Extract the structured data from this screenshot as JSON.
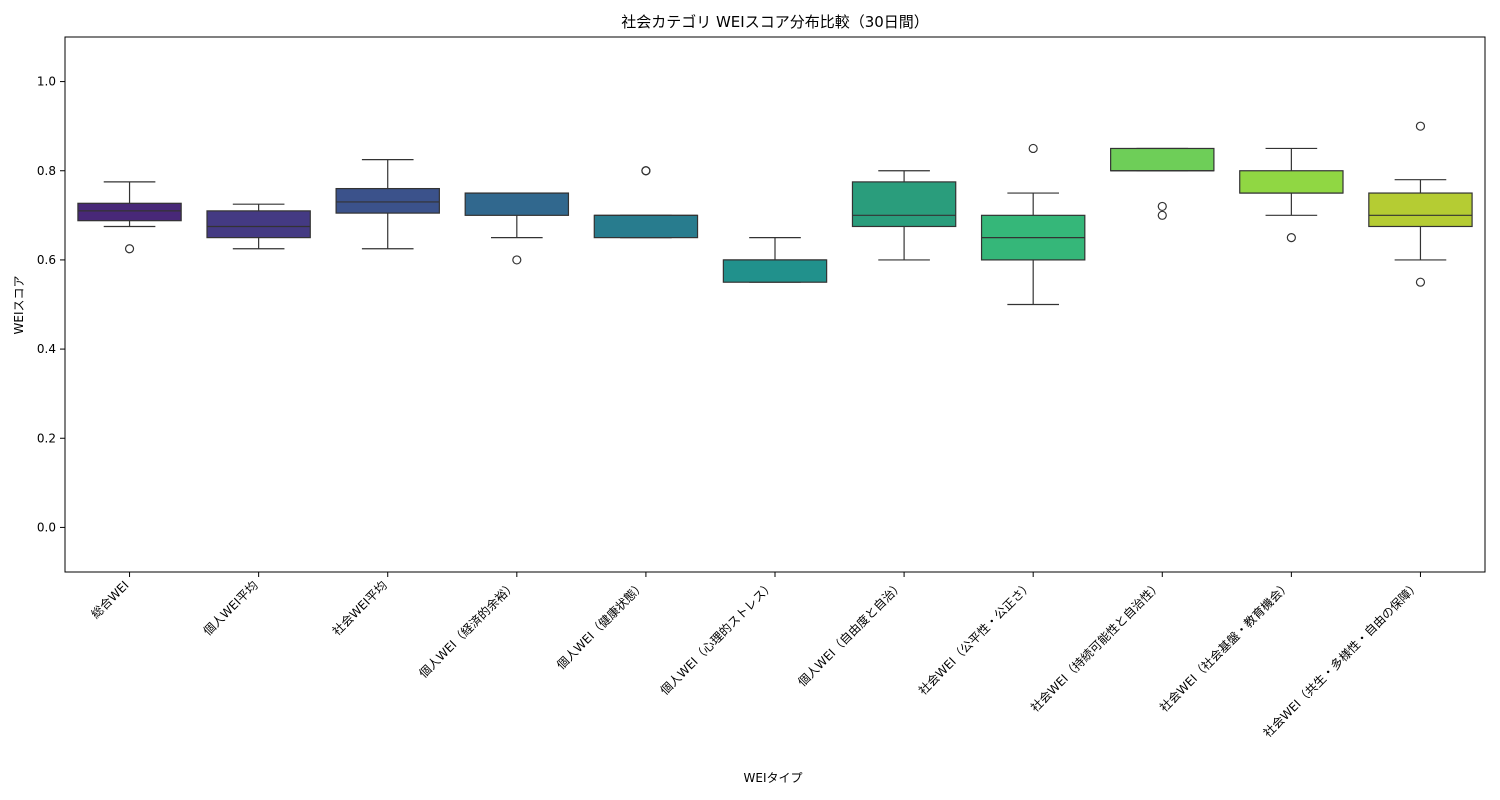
{
  "chart_data": {
    "type": "box",
    "title": "社会カテゴリ WEIスコア分布比較（30日間）",
    "xlabel": "WEIタイプ",
    "ylabel": "WEIスコア",
    "ylim": [
      -0.1,
      1.1
    ],
    "yticks": [
      0.0,
      0.2,
      0.4,
      0.6,
      0.8,
      1.0
    ],
    "ytick_labels": [
      "0.0",
      "0.2",
      "0.4",
      "0.6",
      "0.8",
      "1.0"
    ],
    "grid": false,
    "categories": [
      "総合WEI",
      "個人WEI平均",
      "社会WEI平均",
      "個人WEI（経済的余裕）",
      "個人WEI（健康状態）",
      "個人WEI（心理的ストレス）",
      "個人WEI（自由度と自治）",
      "社会WEI（公平性・公正さ）",
      "社会WEI（持続可能性と自治性）",
      "社会WEI（社会基盤・教育機会）",
      "社会WEI（共生・多様性・自由の保障）"
    ],
    "boxes": [
      {
        "whislo": 0.675,
        "q1": 0.688,
        "med": 0.71,
        "q3": 0.727,
        "whishi": 0.775,
        "fliers": [
          0.625
        ],
        "color": "#482878"
      },
      {
        "whislo": 0.625,
        "q1": 0.65,
        "med": 0.675,
        "q3": 0.71,
        "whishi": 0.725,
        "fliers": [],
        "color": "#443a83"
      },
      {
        "whislo": 0.625,
        "q1": 0.705,
        "med": 0.73,
        "q3": 0.76,
        "whishi": 0.825,
        "fliers": [],
        "color": "#3b528b"
      },
      {
        "whislo": 0.65,
        "q1": 0.7,
        "med": 0.75,
        "q3": 0.75,
        "whishi": 0.75,
        "fliers": [
          0.6
        ],
        "color": "#31688e"
      },
      {
        "whislo": 0.65,
        "q1": 0.65,
        "med": 0.7,
        "q3": 0.7,
        "whishi": 0.7,
        "fliers": [
          0.8,
          0.8
        ],
        "color": "#287c8e"
      },
      {
        "whislo": 0.55,
        "q1": 0.55,
        "med": 0.6,
        "q3": 0.6,
        "whishi": 0.65,
        "fliers": [],
        "color": "#21918c"
      },
      {
        "whislo": 0.6,
        "q1": 0.675,
        "med": 0.7,
        "q3": 0.775,
        "whishi": 0.8,
        "fliers": [],
        "color": "#2a9d7c"
      },
      {
        "whislo": 0.5,
        "q1": 0.6,
        "med": 0.65,
        "q3": 0.7,
        "whishi": 0.75,
        "fliers": [
          0.85
        ],
        "color": "#35b779"
      },
      {
        "whislo": 0.8,
        "q1": 0.8,
        "med": 0.8,
        "q3": 0.85,
        "whishi": 0.85,
        "fliers": [
          0.72,
          0.7
        ],
        "color": "#6ece58"
      },
      {
        "whislo": 0.7,
        "q1": 0.75,
        "med": 0.75,
        "q3": 0.8,
        "whishi": 0.85,
        "fliers": [
          0.65
        ],
        "color": "#90d743"
      },
      {
        "whislo": 0.6,
        "q1": 0.675,
        "med": 0.7,
        "q3": 0.75,
        "whishi": 0.78,
        "fliers": [
          0.9,
          0.55
        ],
        "color": "#b5cc33"
      }
    ]
  }
}
